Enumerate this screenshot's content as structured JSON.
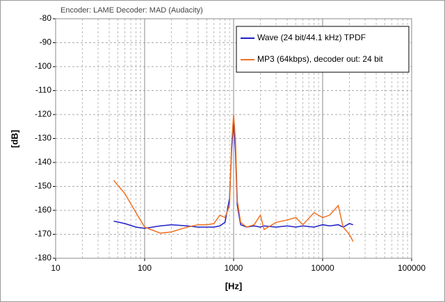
{
  "chart_data": {
    "type": "line",
    "title": "Encoder: LAME    Decoder: MAD (Audacity)",
    "xlabel": "[Hz]",
    "ylabel": "[dB]",
    "x": [
      45,
      60,
      80,
      100,
      150,
      200,
      300,
      400,
      500,
      600,
      700,
      800,
      900,
      950,
      1000,
      1050,
      1100,
      1200,
      1400,
      1700,
      2000,
      2200,
      3000,
      4000,
      5000,
      6000,
      8000,
      10000,
      12000,
      15000,
      17000,
      20000,
      22000
    ],
    "series": [
      {
        "name": "Wave (24 bit/44.1 kHz) TPDF",
        "color": "#1f1fc8",
        "values": [
          -164.5,
          -165.5,
          -167,
          -167.5,
          -166.5,
          -166,
          -166.5,
          -167,
          -167,
          -167,
          -166.5,
          -165,
          -155,
          -135,
          -121,
          -136,
          -158,
          -166,
          -167,
          -166.5,
          -167,
          -166.5,
          -167,
          -166.5,
          -167,
          -166.5,
          -167,
          -166,
          -166.5,
          -166,
          -167,
          -165.5,
          -166
        ]
      },
      {
        "name": "MP3 (64kbps), decoder out: 24 bit",
        "color": "#f07020",
        "values": [
          -147.5,
          -153,
          -161,
          -167,
          -169.5,
          -169,
          -167,
          -166,
          -166,
          -165.5,
          -162,
          -163,
          -158,
          -132,
          -120,
          -131,
          -156,
          -165,
          -167,
          -166,
          -162,
          -168,
          -165,
          -164,
          -163,
          -166,
          -161,
          -163,
          -162,
          -158,
          -167,
          -170,
          -173
        ]
      }
    ],
    "xlim": [
      10,
      100000
    ],
    "xticks": [
      10,
      100,
      1000,
      10000,
      100000
    ],
    "xscale": "log",
    "ylim": [
      -180,
      -80
    ],
    "yticks": [
      -80,
      -90,
      -100,
      -110,
      -120,
      -130,
      -140,
      -150,
      -160,
      -170,
      -180
    ],
    "grid": true,
    "minor_grid": true,
    "legend": "upper right"
  }
}
